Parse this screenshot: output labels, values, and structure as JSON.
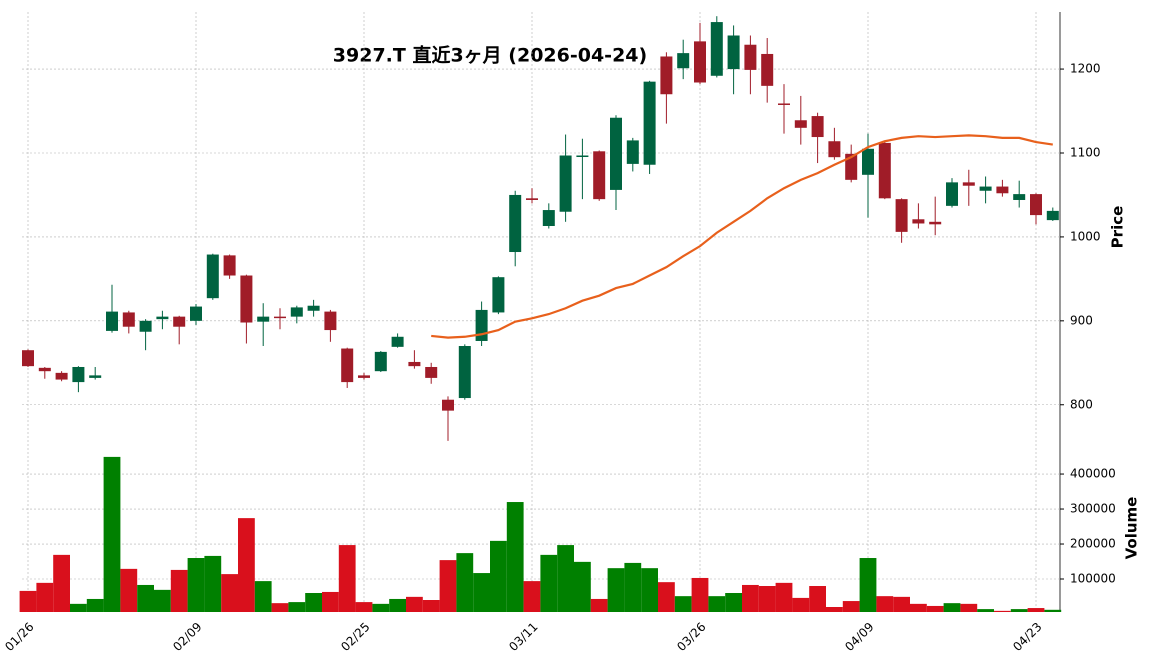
{
  "chart_data": {
    "type": "candlestick",
    "title": "3927.T 直近3ヶ月 (2026-04-24)",
    "categories": [
      "01/26",
      null,
      null,
      null,
      null,
      null,
      null,
      null,
      null,
      null,
      "02/09",
      null,
      null,
      null,
      null,
      null,
      null,
      null,
      null,
      null,
      "02/25",
      null,
      null,
      null,
      null,
      null,
      null,
      null,
      null,
      null,
      "03/11",
      null,
      null,
      null,
      null,
      null,
      null,
      null,
      null,
      null,
      "03/26",
      null,
      null,
      null,
      null,
      null,
      null,
      null,
      null,
      null,
      "04/09",
      null,
      null,
      null,
      null,
      null,
      null,
      null,
      null,
      null,
      "04/23",
      null
    ],
    "open": [
      865,
      844,
      838,
      827,
      832,
      888,
      910,
      887,
      902,
      905,
      900,
      927,
      978,
      954,
      899,
      905,
      905,
      912,
      911,
      867,
      835,
      840,
      869,
      851,
      845,
      806,
      808,
      876,
      910,
      982,
      1046,
      1013,
      1030,
      1096,
      1102,
      1056,
      1087,
      1086,
      1215,
      1201,
      1233,
      1192,
      1200,
      1229,
      1218,
      1159,
      1139,
      1144,
      1114,
      1099,
      1074,
      1112,
      1045,
      1021,
      1018,
      1037,
      1065,
      1055,
      1060,
      1044,
      1051,
      1020
    ],
    "high": [
      866,
      845,
      840,
      846,
      845,
      943,
      912,
      902,
      912,
      906,
      920,
      980,
      979,
      955,
      921,
      915,
      918,
      925,
      913,
      868,
      838,
      864,
      885,
      865,
      850,
      810,
      872,
      923,
      953,
      1055,
      1058,
      1040,
      1122,
      1117,
      1103,
      1145,
      1118,
      1186,
      1220,
      1235,
      1255,
      1263,
      1252,
      1240,
      1237,
      1182,
      1168,
      1148,
      1130,
      1110,
      1123,
      1113,
      1046,
      1040,
      1048,
      1070,
      1080,
      1072,
      1068,
      1067,
      1052,
      1035
    ],
    "low": [
      845,
      831,
      828,
      815,
      830,
      886,
      885,
      865,
      890,
      872,
      895,
      925,
      950,
      873,
      870,
      890,
      897,
      905,
      875,
      820,
      830,
      839,
      868,
      843,
      825,
      757,
      806,
      870,
      908,
      965,
      1040,
      1010,
      1018,
      1045,
      1043,
      1032,
      1078,
      1075,
      1135,
      1188,
      1182,
      1190,
      1170,
      1170,
      1160,
      1123,
      1110,
      1088,
      1092,
      1065,
      1023,
      1045,
      993,
      1010,
      1002,
      1035,
      1037,
      1040,
      1048,
      1035,
      1015,
      1019
    ],
    "close": [
      846,
      840,
      830,
      845,
      835,
      911,
      893,
      900,
      905,
      893,
      917,
      979,
      954,
      898,
      905,
      904,
      916,
      918,
      889,
      827,
      832,
      863,
      881,
      846,
      832,
      793,
      870,
      913,
      952,
      1050,
      1044,
      1032,
      1097,
      1097,
      1045,
      1142,
      1115,
      1185,
      1170,
      1219,
      1184,
      1256,
      1240,
      1199,
      1180,
      1158,
      1130,
      1119,
      1095,
      1068,
      1105,
      1046,
      1006,
      1016,
      1015,
      1065,
      1061,
      1060,
      1052,
      1051,
      1026,
      1031
    ],
    "up_color": "#006340",
    "down_color": "#a01c28",
    "ylim": [
      758,
      1268
    ],
    "yticks": [
      800,
      900,
      1000,
      1100,
      1200
    ],
    "ylabel": "Price",
    "grid": true,
    "line": {
      "color": "#e8601c",
      "values": [
        null,
        null,
        null,
        null,
        null,
        null,
        null,
        null,
        null,
        null,
        null,
        null,
        null,
        null,
        null,
        null,
        null,
        null,
        null,
        null,
        null,
        null,
        null,
        null,
        882,
        880,
        881,
        884,
        889,
        899,
        903,
        908,
        915,
        924,
        930,
        939,
        944,
        954,
        964,
        977,
        989,
        1005,
        1018,
        1031,
        1046,
        1058,
        1068,
        1076,
        1086,
        1095,
        1107,
        1114,
        1118,
        1120,
        1119,
        1120,
        1121,
        1120,
        1118,
        1118,
        1113,
        1110
      ]
    },
    "volume": {
      "label": "Volume",
      "up_color": "#008000",
      "down_color": "#d9101c",
      "ylim": [
        0,
        463000
      ],
      "yticks": [
        100000,
        200000,
        300000,
        400000
      ],
      "values": [
        66000,
        89000,
        169000,
        29000,
        43000,
        449000,
        129000,
        83000,
        69000,
        126000,
        160000,
        166000,
        114000,
        274000,
        94000,
        31000,
        34000,
        60000,
        63000,
        197000,
        34000,
        29000,
        43000,
        49000,
        40000,
        154000,
        174000,
        117000,
        209000,
        320000,
        94000,
        169000,
        197000,
        149000,
        43000,
        131000,
        146000,
        131000,
        91000,
        51000,
        103000,
        51000,
        60000,
        83000,
        80000,
        89000,
        46000,
        80000,
        20000,
        37000,
        160000,
        51000,
        49000,
        29000,
        23000,
        31000,
        29000,
        14000,
        9000,
        14000,
        17000,
        12000
      ]
    }
  }
}
